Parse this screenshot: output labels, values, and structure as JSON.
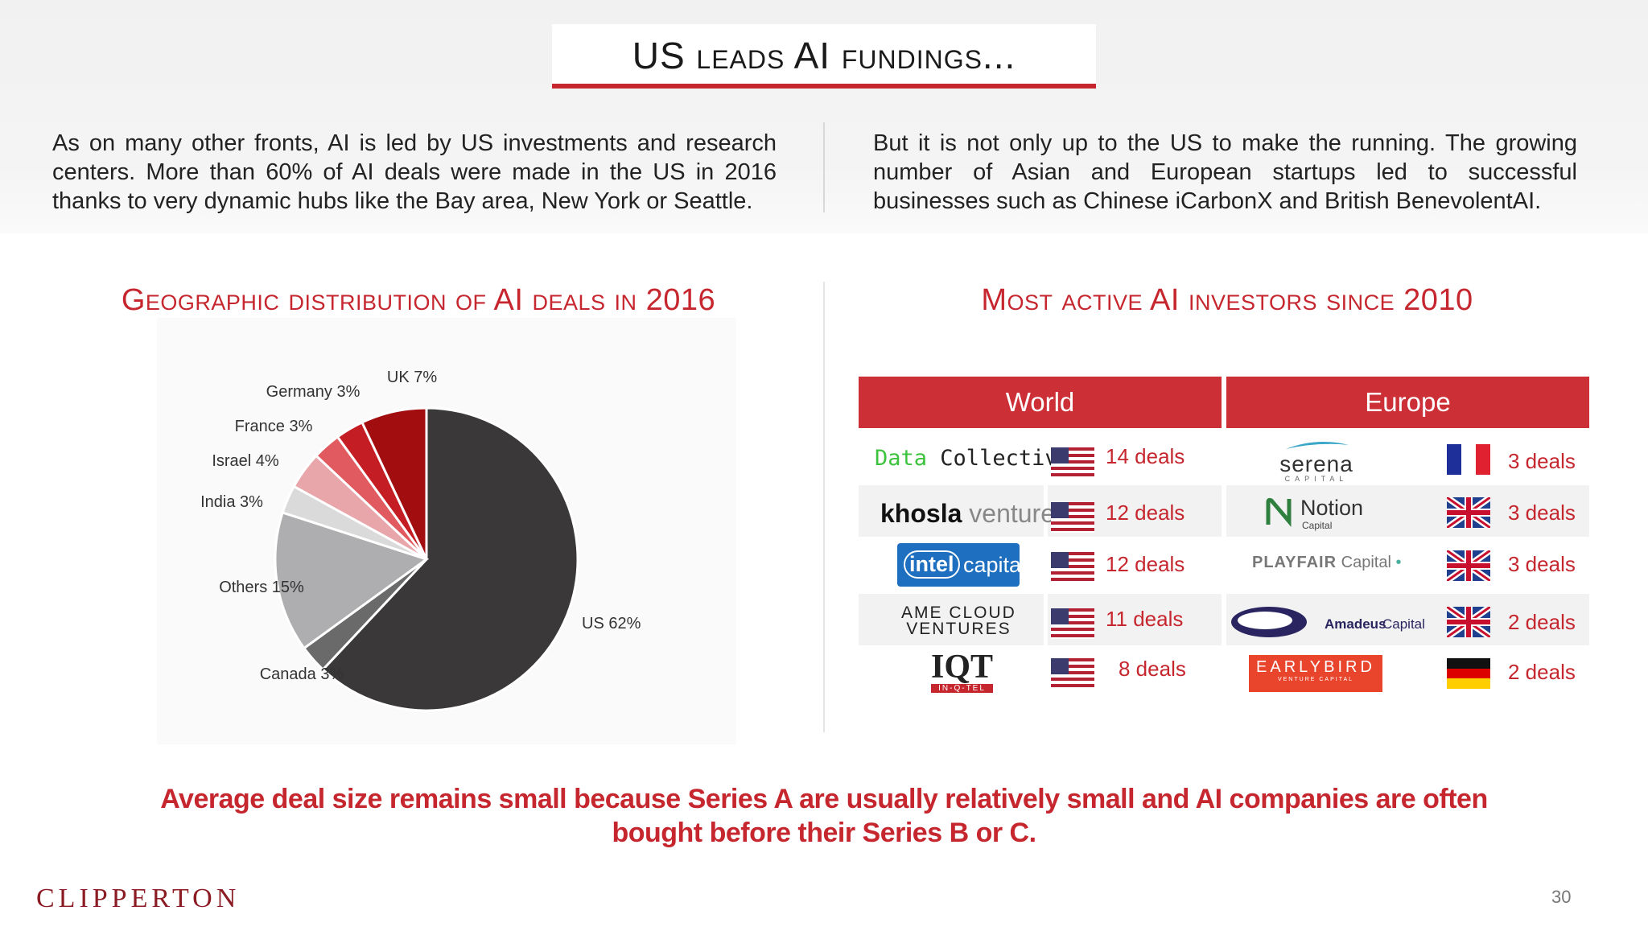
{
  "header": {
    "title": "US leads AI fundings..."
  },
  "intro": {
    "left": "As on many other fronts, AI is led by US investments and research centers. More than 60% of AI deals were made in the US in 2016 thanks to very dynamic hubs like the Bay area, New York or Seattle.",
    "right": "But it is not only up to the US to make the running. The growing number of Asian and European startups led to successful businesses such as Chinese iCarbonX and British BenevolentAI."
  },
  "pie_section": {
    "title": "Geographic distribution of AI deals in 2016"
  },
  "investors_section": {
    "title": "Most active AI investors since 2010"
  },
  "chart_data": {
    "type": "pie",
    "title": "Geographic distribution of AI deals in 2016",
    "categories": [
      "US",
      "Canada",
      "Others",
      "India",
      "Israel",
      "France",
      "Germany",
      "UK"
    ],
    "values": [
      62,
      3,
      15,
      3,
      4,
      3,
      3,
      7
    ],
    "labels": [
      "US 62%",
      "Canada 3%",
      "Others 15%",
      "India 3%",
      "Israel 4%",
      "France 3%",
      "Germany 3%",
      "UK 7%"
    ],
    "colors": [
      "#3a3839",
      "#6b6a6b",
      "#aeadaf",
      "#dadada",
      "#e8a6aa",
      "#e05a60",
      "#c41e24",
      "#a20d10"
    ]
  },
  "table": {
    "world_header": "World",
    "europe_header": "Europe",
    "world": [
      {
        "investor": "Data Collective",
        "deals": "14 deals",
        "flag": "us-flag"
      },
      {
        "investor": "khosla ventures",
        "deals": "12 deals",
        "flag": "us-flag"
      },
      {
        "investor": "intel capital",
        "deals": "12 deals",
        "flag": "us-flag"
      },
      {
        "investor": "AME CLOUD VENTURES",
        "deals": "11 deals",
        "flag": "us-flag"
      },
      {
        "investor": "IQT",
        "deals": "8 deals",
        "flag": "us-flag"
      }
    ],
    "europe": [
      {
        "investor": "serena",
        "deals": "3 deals",
        "flag": "fr-flag"
      },
      {
        "investor": "Notion",
        "deals": "3 deals",
        "flag": "uk-flag"
      },
      {
        "investor": "PLAYFAIR Capital",
        "deals": "3 deals",
        "flag": "uk-flag"
      },
      {
        "investor": "Amadeus Capital",
        "deals": "2 deals",
        "flag": "uk-flag"
      },
      {
        "investor": "EARLYBIRD",
        "deals": "2 deals",
        "flag": "de-flag"
      }
    ],
    "logo_sub": {
      "serena": "CAPITAL",
      "notion": "Capital",
      "amadeus_prefix": "Amadeus",
      "amadeus_suffix": "Capital",
      "earlybird": "VENTURE CAPITAL",
      "iqt": "IN-Q-TEL",
      "intel_a": "intel",
      "intel_b": "capital",
      "khosla_a": "khosla",
      "khosla_b": "ventures",
      "dc_a": "Data",
      "dc_b": "Collective",
      "ame_a": "AME CLOUD",
      "ame_b": "VENTURES",
      "playfair_a": "PLAYFAIR",
      "playfair_b": "Capital"
    }
  },
  "footer": {
    "message": "Average deal size remains small because Series A are usually relatively small and AI companies are often bought before their Series B or C.",
    "brand": "CLIPPERTON",
    "page": "30"
  }
}
